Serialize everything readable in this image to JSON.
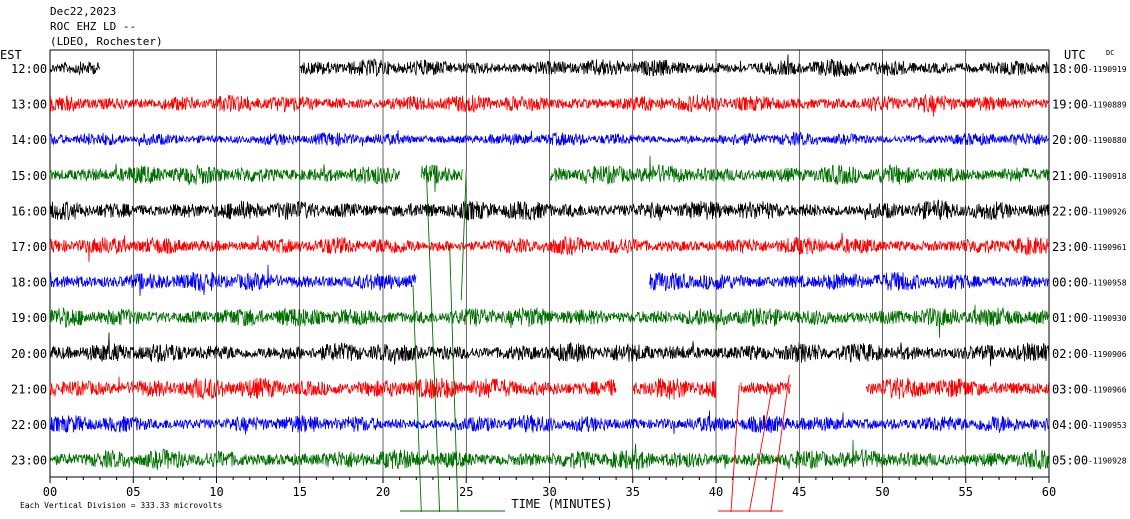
{
  "header": {
    "date": "Dec22,2023",
    "station": "ROC EHZ LD --",
    "network": "(LDEO, Rochester)"
  },
  "chart_data": {
    "type": "line",
    "title": "Dec22,2023",
    "left_axis_label": "EST",
    "right_axis_label": "UTC",
    "dc_label": "DC",
    "xlabel": "TIME (MINUTES)",
    "x_ticks": [
      "00",
      "05",
      "10",
      "15",
      "20",
      "25",
      "30",
      "35",
      "40",
      "45",
      "50",
      "55",
      "60"
    ],
    "xlim": [
      0,
      60
    ],
    "scale_note": "Each Vertical Division =  333.33 microvolts",
    "colors": [
      "#000000",
      "#ff0000",
      "#0000ff",
      "#007000"
    ],
    "rows": [
      {
        "est": "12:00",
        "utc": "18:00",
        "dc": "-1190919",
        "color": "#000000",
        "amp": 8,
        "gaps": [
          [
            3,
            15
          ]
        ]
      },
      {
        "est": "13:00",
        "utc": "19:00",
        "dc": "-1190889",
        "color": "#ff0000",
        "amp": 8,
        "gaps": []
      },
      {
        "est": "14:00",
        "utc": "20:00",
        "dc": "-1190880",
        "color": "#0000ff",
        "amp": 6,
        "gaps": []
      },
      {
        "est": "15:00",
        "utc": "21:00",
        "dc": "-1190918",
        "color": "#007000",
        "amp": 9,
        "gaps": [
          [
            21,
            22.3
          ],
          [
            24.8,
            30
          ]
        ]
      },
      {
        "est": "16:00",
        "utc": "22:00",
        "dc": "-1190926",
        "color": "#000000",
        "amp": 9,
        "gaps": []
      },
      {
        "est": "17:00",
        "utc": "23:00",
        "dc": "-1190961",
        "color": "#ff0000",
        "amp": 8,
        "gaps": []
      },
      {
        "est": "18:00",
        "utc": "00:00",
        "dc": "-1190958",
        "color": "#0000ff",
        "amp": 9,
        "gaps": [
          [
            22,
            36
          ]
        ]
      },
      {
        "est": "19:00",
        "utc": "01:00",
        "dc": "-1190930",
        "color": "#007000",
        "amp": 9,
        "gaps": []
      },
      {
        "est": "20:00",
        "utc": "02:00",
        "dc": "-1190906",
        "color": "#000000",
        "amp": 9,
        "gaps": []
      },
      {
        "est": "21:00",
        "utc": "03:00",
        "dc": "-1190966",
        "color": "#ff0000",
        "amp": 10,
        "gaps": [
          [
            34,
            35
          ],
          [
            40,
            41.5
          ],
          [
            44.5,
            49
          ]
        ]
      },
      {
        "est": "22:00",
        "utc": "04:00",
        "dc": "-1190953",
        "color": "#0000ff",
        "amp": 8,
        "gaps": []
      },
      {
        "est": "23:00",
        "utc": "05:00",
        "dc": "-1190928",
        "color": "#007000",
        "amp": 9,
        "gaps": []
      }
    ]
  }
}
